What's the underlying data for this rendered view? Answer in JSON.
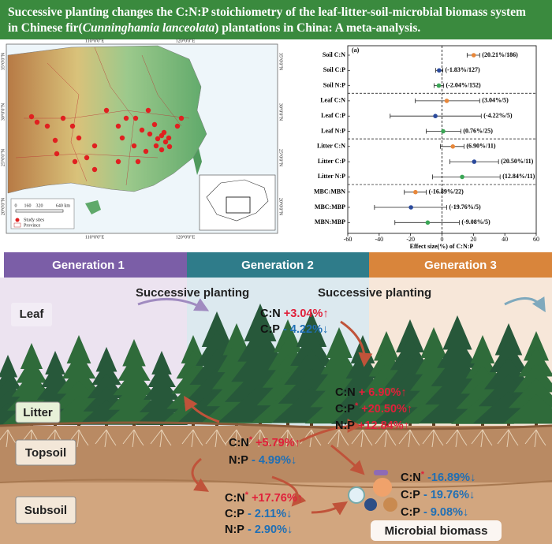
{
  "title": [
    "Successive planting changes the C:N:P stoichiometry of the leaf-litter-soil-microbial biomass system in Chinese fir(",
    "Cunninghamia lanceolata",
    ") plantations in China: A meta-analysis."
  ],
  "map": {
    "lon_labels": [
      "110°0'0\"E",
      "120°0'0\"E"
    ],
    "lat_labels": [
      "35°0'0\"N",
      "30°0'0\"N",
      "25°0'0\"N",
      "20°0'0\"N"
    ],
    "scale_labels": [
      "0",
      "160",
      "320",
      "640 km"
    ],
    "legend": [
      "Study sites",
      "Province"
    ]
  },
  "chart_data": {
    "type": "forest",
    "panel_label": "(a)",
    "xlabel": "Effect size(%) of C:N:P",
    "categories": [
      "Soil C:N",
      "Soil C:P",
      "Soil N:P",
      "Leaf C:N",
      "Leaf C:P",
      "Leaf N:P",
      "Litter C:N",
      "Litter C:P",
      "Litter N:P",
      "MBC:MBN",
      "MBC:MBP",
      "MBN:MBP"
    ],
    "values": [
      20.21,
      -1.83,
      -2.04,
      3.04,
      -4.22,
      0.76,
      6.9,
      20.5,
      12.84,
      -16.89,
      -19.76,
      -9.08
    ],
    "ci_low": [
      16,
      -4,
      -5,
      -17,
      -33,
      -10,
      -1,
      5,
      -6,
      -24,
      -43,
      -30
    ],
    "ci_high": [
      24,
      0.5,
      1,
      24,
      25,
      12,
      14,
      36,
      37,
      -10,
      3,
      11
    ],
    "value_labels": [
      "(20.21%/186)",
      "(-1.83%/127)",
      "(-2.04%/152)",
      "(3.04%/5)",
      "(-4.22%/5)",
      "(0.76%/25)",
      "(6.90%/11)",
      "(20.50%/11)",
      "(12.84%/11)",
      "(-16.89%/22)",
      "(-19.76%/5)",
      "(-9.08%/5)"
    ],
    "colors": [
      "#e8873a",
      "#2b4a9c",
      "#3aa655",
      "#e8873a",
      "#2b4a9c",
      "#3aa655",
      "#e8873a",
      "#2b4a9c",
      "#3aa655",
      "#e8873a",
      "#2b4a9c",
      "#3aa655"
    ],
    "xlim": [
      -60,
      60
    ],
    "xticks": [
      -60,
      -40,
      -20,
      0,
      20,
      40,
      60
    ]
  },
  "illustration": {
    "generations": [
      "Generation 1",
      "Generation 2",
      "Generation 3"
    ],
    "arrows": [
      "Successive planting",
      "Successive planting"
    ],
    "layers": [
      "Leaf",
      "Litter",
      "Topsoil",
      "Subsoil"
    ],
    "microbial_label": "Microbial biomass",
    "stats": {
      "leaf": [
        {
          "ratio": "C:N",
          "change": "+3.04%↑"
        },
        {
          "ratio": "C:P",
          "change": "- 4.22%↓"
        }
      ],
      "litter": [
        {
          "ratio": "C:N",
          "change": "+  6.90%↑"
        },
        {
          "ratio": "C:P",
          "mark": "*",
          "change": "+20.50%↑"
        },
        {
          "ratio": "N:P",
          "change": "+12.84%↑"
        }
      ],
      "topsoil": [
        {
          "ratio": "C:N",
          "mark": "*",
          "change": "+5.79%↑"
        },
        {
          "ratio": "N:P",
          "change": "- 4.99%↓"
        }
      ],
      "subsoil": [
        {
          "ratio": "C:N",
          "mark": "*",
          "change": "+17.76%↑"
        },
        {
          "ratio": "C:P",
          "change": "- 2.11%↓"
        },
        {
          "ratio": "N:P",
          "change": "- 2.90%↓"
        }
      ],
      "microbial": [
        {
          "ratio": "C:N",
          "mark": "*",
          "change": "-16.89%↓"
        },
        {
          "ratio": "C:P",
          "change": "- 19.76%↓"
        },
        {
          "ratio": "C:P",
          "change": "- 9.08%↓"
        }
      ]
    }
  }
}
